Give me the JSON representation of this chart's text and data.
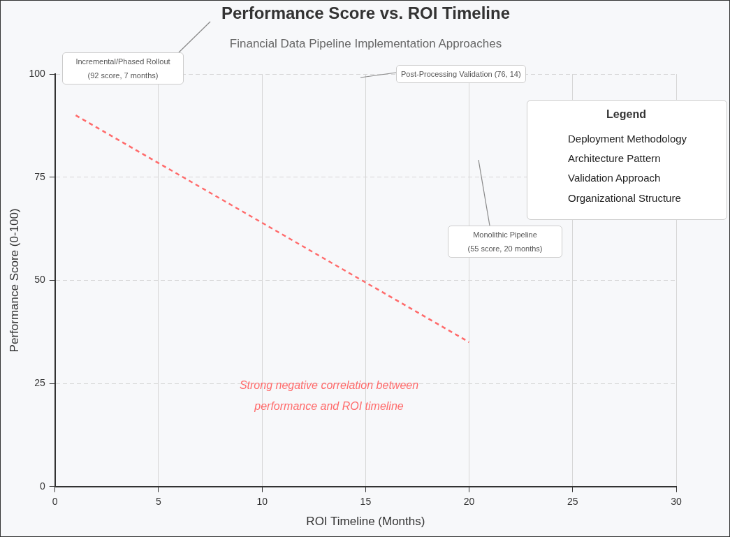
{
  "chart_data": {
    "type": "line",
    "title": "Performance Score vs. ROI Timeline",
    "subtitle": "Financial Data Pipeline Implementation Approaches",
    "xlabel": "ROI Timeline (Months)",
    "ylabel": "Performance Score (0-100)",
    "xlim": [
      0,
      30
    ],
    "ylim": [
      0,
      100
    ],
    "xticks": [
      0,
      5,
      10,
      15,
      20,
      25,
      30
    ],
    "yticks": [
      0,
      25,
      50,
      75,
      100
    ],
    "grid": true,
    "marker": "none",
    "series": [
      {
        "x": [
          1,
          20
        ],
        "values": [
          90,
          35
        ],
        "color": "#ff6b6b",
        "line_style": "dashed"
      }
    ],
    "annotations": [
      "Incremental/Phased Rollout\n(92 score, 7 months)",
      "Post-Processing Validation (76, 14)",
      "Monolithic Pipeline\n(55 score, 20 months)",
      "Strong negative correlation between\nperformance and ROI timeline",
      "Legend",
      "Deployment Methodology",
      "Architecture Pattern",
      "Validation Approach",
      "Organizational Structure"
    ]
  }
}
